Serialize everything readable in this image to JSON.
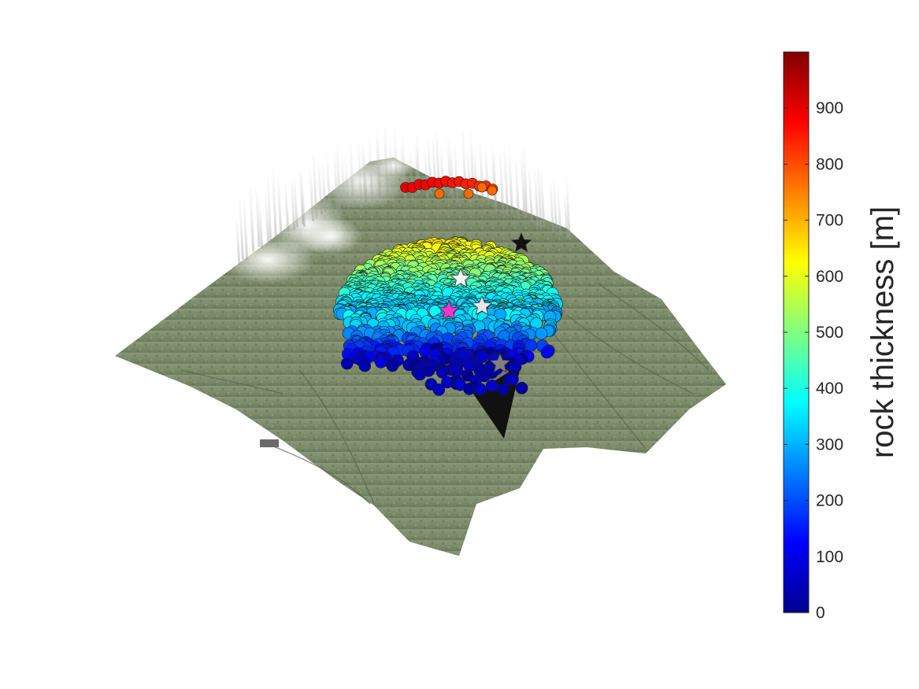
{
  "chart_data": {
    "type": "scatter",
    "title": "",
    "xlabel": "",
    "ylabel": "",
    "colorbar": {
      "label": "rock thickness [m]",
      "range": [
        0,
        1000
      ],
      "ticks": [
        0,
        100,
        200,
        300,
        400,
        500,
        600,
        700,
        800,
        900
      ],
      "tick_labels": [
        "0",
        "100",
        "200",
        "300",
        "400",
        "500",
        "600",
        "700",
        "800",
        "900"
      ],
      "colormap": "jet"
    },
    "markers": [
      {
        "symbol": "star",
        "color": "#ff33cc"
      },
      {
        "symbol": "star",
        "color": "#f2f2f2"
      },
      {
        "symbol": "star",
        "color": "#e6e6e6"
      },
      {
        "symbol": "star",
        "color": "#dddddd"
      },
      {
        "symbol": "star",
        "color": "#808080"
      },
      {
        "symbol": "star",
        "color": "#111111"
      }
    ]
  },
  "colors": {
    "terrain": "#7f8f6e",
    "terrain_dark": "#5f6e52",
    "cloud": "#e8eef2",
    "shadow": "#111111"
  }
}
